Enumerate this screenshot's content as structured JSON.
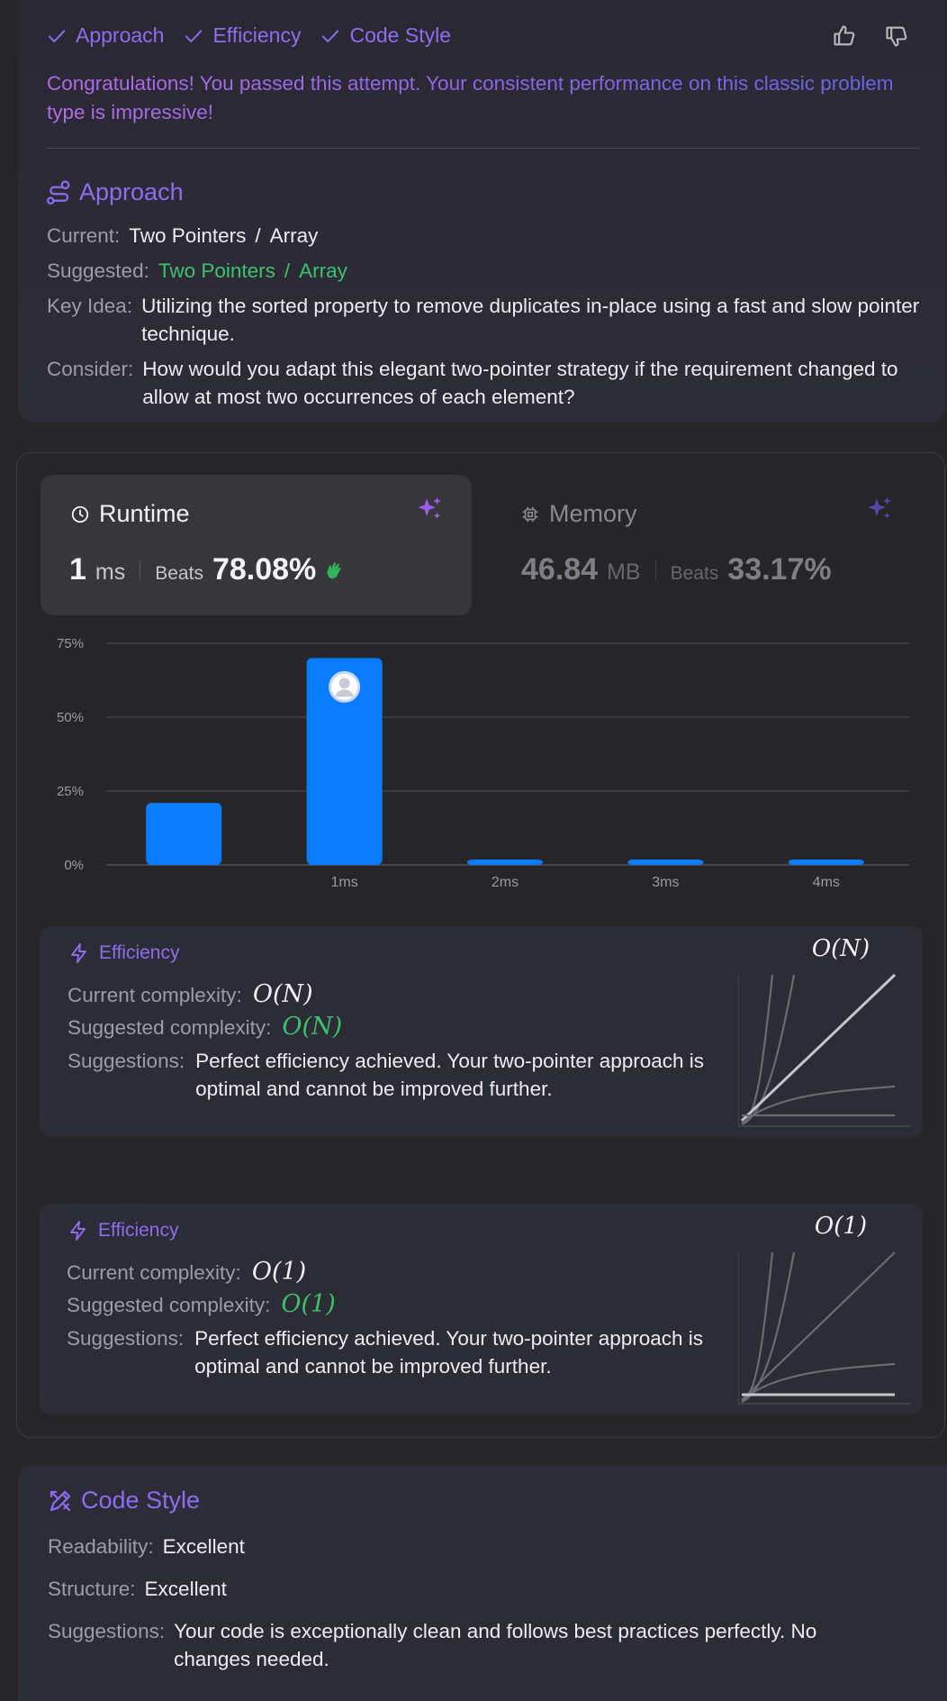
{
  "feedback": {
    "pills": [
      "Approach",
      "Efficiency",
      "Code Style"
    ],
    "congrats": "Congratulations! You passed this attempt. Your consistent performance on this classic problem type is impressive!"
  },
  "approach": {
    "title": "Approach",
    "current_label": "Current:",
    "current_a": "Two Pointers",
    "current_b": "Array",
    "suggested_label": "Suggested:",
    "suggested_a": "Two Pointers",
    "suggested_b": "Array",
    "slash": "/",
    "key_label": "Key Idea:",
    "key_text": "Utilizing the sorted property to remove duplicates in-place using a fast and slow pointer technique.",
    "consider_label": "Consider:",
    "consider_text": "How would you adapt this elegant two-pointer strategy if the requirement changed to allow at most two occurrences of each element?"
  },
  "runtime": {
    "title": "Runtime",
    "value": "1",
    "unit": "ms",
    "beats_label": "Beats",
    "beats": "78.08%"
  },
  "memory": {
    "title": "Memory",
    "value": "46.84",
    "unit": "MB",
    "beats_label": "Beats",
    "beats": "33.17%"
  },
  "chart_data": {
    "type": "bar",
    "categories": [
      "",
      "1ms",
      "2ms",
      "3ms",
      "4ms"
    ],
    "values": [
      21,
      70,
      1.5,
      1.5,
      1.5
    ],
    "highlight_index": 1,
    "y_ticks": [
      "0%",
      "25%",
      "50%",
      "75%"
    ],
    "ylim": [
      0,
      75
    ],
    "bar_color": "#0a7cff",
    "grid": true
  },
  "efficiency_time": {
    "title": "Efficiency",
    "current_label": "Current complexity:",
    "current": "O(N)",
    "suggested_label": "Suggested complexity:",
    "suggested": "O(N)",
    "suggestions_label": "Suggestions:",
    "suggestions": "Perfect efficiency achieved. Your two-pointer approach is optimal and cannot be improved further.",
    "graph_label": "O(N)"
  },
  "efficiency_space": {
    "title": "Efficiency",
    "current_label": "Current complexity:",
    "current": "O(1)",
    "suggested_label": "Suggested complexity:",
    "suggested": "O(1)",
    "suggestions_label": "Suggestions:",
    "suggestions": "Perfect efficiency achieved. Your two-pointer approach is optimal and cannot be improved further.",
    "graph_label": "O(1)"
  },
  "code_style": {
    "title": "Code Style",
    "readability_label": "Readability:",
    "readability": "Excellent",
    "structure_label": "Structure:",
    "structure": "Excellent",
    "suggestions_label": "Suggestions:",
    "suggestions": "Your code is exceptionally clean and follows best practices perfectly. No changes needed."
  },
  "colors": {
    "accent": "#8e6cf0",
    "green": "#3cc26a",
    "bar": "#0a7cff"
  }
}
